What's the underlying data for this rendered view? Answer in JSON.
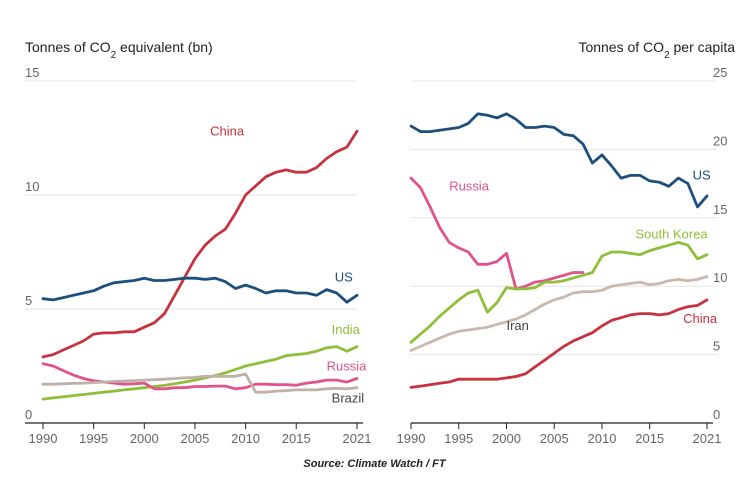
{
  "source": "Source: Climate Watch / FT",
  "colors": {
    "China": "#c8323f",
    "US": "#1d4f7c",
    "India": "#8fbf3a",
    "Russia": "#e0548a",
    "Brazil": "#bfb1a8",
    "Iran": "#c9b8ad",
    "South Korea": "#8fbf3a",
    "grid": "#e3e3e3",
    "axis": "#222222",
    "tick": "#666666"
  },
  "chart_data": [
    {
      "type": "line",
      "title_prefix": "Tonnes of CO",
      "title_sub": "2",
      "title_suffix": " equivalent (bn)",
      "xlim": [
        1990,
        2021
      ],
      "ylim": [
        0,
        15
      ],
      "xticks": [
        1990,
        1995,
        2000,
        2005,
        2010,
        2015,
        2021
      ],
      "yticks": [
        0,
        5,
        10,
        15
      ],
      "grid": true,
      "series": [
        {
          "name": "China",
          "label": {
            "x": 2006.5,
            "y": 12.6
          },
          "x": [
            1990,
            1991,
            1992,
            1993,
            1994,
            1995,
            1996,
            1997,
            1998,
            1999,
            2000,
            2001,
            2002,
            2003,
            2004,
            2005,
            2006,
            2007,
            2008,
            2009,
            2010,
            2011,
            2012,
            2013,
            2014,
            2015,
            2016,
            2017,
            2018,
            2019,
            2020,
            2021
          ],
          "y": [
            2.9,
            3.0,
            3.2,
            3.4,
            3.6,
            3.9,
            3.95,
            3.95,
            4.0,
            4.0,
            4.2,
            4.4,
            4.8,
            5.6,
            6.4,
            7.2,
            7.8,
            8.2,
            8.5,
            9.2,
            10.0,
            10.4,
            10.8,
            11.0,
            11.1,
            11.0,
            11.0,
            11.2,
            11.6,
            11.9,
            12.1,
            12.8
          ]
        },
        {
          "name": "US",
          "label": {
            "x": 2018.8,
            "y": 6.2
          },
          "x": [
            1990,
            1991,
            1992,
            1993,
            1994,
            1995,
            1996,
            1997,
            1998,
            1999,
            2000,
            2001,
            2002,
            2003,
            2004,
            2005,
            2006,
            2007,
            2008,
            2009,
            2010,
            2011,
            2012,
            2013,
            2014,
            2015,
            2016,
            2017,
            2018,
            2019,
            2020,
            2021
          ],
          "y": [
            5.45,
            5.4,
            5.5,
            5.6,
            5.7,
            5.8,
            6.0,
            6.15,
            6.2,
            6.25,
            6.35,
            6.25,
            6.25,
            6.3,
            6.35,
            6.35,
            6.3,
            6.35,
            6.2,
            5.9,
            6.05,
            5.9,
            5.7,
            5.8,
            5.8,
            5.7,
            5.7,
            5.6,
            5.85,
            5.7,
            5.3,
            5.6
          ]
        },
        {
          "name": "India",
          "label": {
            "x": 2018.5,
            "y": 3.9
          },
          "x": [
            1990,
            1991,
            1992,
            1993,
            1994,
            1995,
            1996,
            1997,
            1998,
            1999,
            2000,
            2001,
            2002,
            2003,
            2004,
            2005,
            2006,
            2007,
            2008,
            2009,
            2010,
            2011,
            2012,
            2013,
            2014,
            2015,
            2016,
            2017,
            2018,
            2019,
            2020,
            2021
          ],
          "y": [
            1.05,
            1.1,
            1.15,
            1.2,
            1.25,
            1.3,
            1.35,
            1.4,
            1.45,
            1.5,
            1.55,
            1.6,
            1.65,
            1.72,
            1.8,
            1.88,
            1.98,
            2.08,
            2.2,
            2.35,
            2.5,
            2.6,
            2.7,
            2.8,
            2.95,
            3.0,
            3.05,
            3.15,
            3.3,
            3.35,
            3.15,
            3.35
          ]
        },
        {
          "name": "Russia",
          "label": {
            "x": 2018.0,
            "y": 2.3
          },
          "x": [
            1990,
            1991,
            1992,
            1993,
            1994,
            1995,
            1996,
            1997,
            1998,
            1999,
            2000,
            2001,
            2002,
            2003,
            2004,
            2005,
            2006,
            2007,
            2008,
            2009,
            2010,
            2011,
            2012,
            2013,
            2014,
            2015,
            2016,
            2017,
            2018,
            2019,
            2020,
            2021
          ],
          "y": [
            2.6,
            2.5,
            2.3,
            2.1,
            1.95,
            1.85,
            1.8,
            1.75,
            1.7,
            1.72,
            1.75,
            1.5,
            1.5,
            1.55,
            1.55,
            1.6,
            1.6,
            1.62,
            1.62,
            1.5,
            1.55,
            1.7,
            1.7,
            1.68,
            1.68,
            1.66,
            1.75,
            1.8,
            1.88,
            1.88,
            1.8,
            1.95
          ]
        },
        {
          "name": "Brazil",
          "label": {
            "x": 2018.5,
            "y": 0.9
          },
          "x": [
            1990,
            1991,
            1992,
            1993,
            1994,
            1995,
            1996,
            1997,
            1998,
            1999,
            2000,
            2001,
            2002,
            2003,
            2004,
            2005,
            2006,
            2007,
            2008,
            2009,
            2010,
            2011,
            2012,
            2013,
            2014,
            2015,
            2016,
            2017,
            2018,
            2019,
            2020,
            2021
          ],
          "y": [
            1.7,
            1.7,
            1.72,
            1.74,
            1.75,
            1.77,
            1.8,
            1.82,
            1.84,
            1.86,
            1.88,
            1.9,
            1.92,
            1.95,
            1.98,
            2.0,
            2.05,
            2.05,
            2.05,
            2.05,
            2.15,
            1.35,
            1.35,
            1.4,
            1.42,
            1.45,
            1.45,
            1.45,
            1.5,
            1.52,
            1.5,
            1.55
          ]
        }
      ]
    },
    {
      "type": "line",
      "title_prefix": "Tonnes of CO",
      "title_sub": "2",
      "title_suffix": " per capita",
      "xlim": [
        1990,
        2021
      ],
      "ylim": [
        0,
        25
      ],
      "xticks": [
        1990,
        1995,
        2000,
        2005,
        2010,
        2015,
        2021
      ],
      "yticks": [
        0,
        5,
        10,
        15,
        20,
        25
      ],
      "grid": true,
      "series": [
        {
          "name": "US",
          "label": {
            "x": 2019.5,
            "y": 17.8
          },
          "x": [
            1990,
            1991,
            1992,
            1993,
            1994,
            1995,
            1996,
            1997,
            1998,
            1999,
            2000,
            2001,
            2002,
            2003,
            2004,
            2005,
            2006,
            2007,
            2008,
            2009,
            2010,
            2011,
            2012,
            2013,
            2014,
            2015,
            2016,
            2017,
            2018,
            2019,
            2020,
            2021
          ],
          "y": [
            21.7,
            21.3,
            21.3,
            21.4,
            21.5,
            21.6,
            21.9,
            22.6,
            22.5,
            22.3,
            22.6,
            22.2,
            21.6,
            21.6,
            21.7,
            21.6,
            21.1,
            21.0,
            20.4,
            19.0,
            19.6,
            18.8,
            17.9,
            18.1,
            18.1,
            17.7,
            17.6,
            17.3,
            17.9,
            17.5,
            15.8,
            16.6
          ]
        },
        {
          "name": "Russia",
          "label": {
            "x": 1994.0,
            "y": 17.0
          },
          "x": [
            1990,
            1991,
            1992,
            1993,
            1994,
            1995,
            1996,
            1997,
            1998,
            1999,
            2000,
            2001,
            2002,
            2003,
            2004,
            2005,
            2006,
            2007,
            2008
          ],
          "y": [
            17.9,
            17.2,
            15.8,
            14.3,
            13.2,
            12.8,
            12.5,
            11.6,
            11.6,
            11.8,
            12.4,
            9.8,
            10.0,
            10.3,
            10.4,
            10.6,
            10.8,
            11.0,
            11.0
          ]
        },
        {
          "name": "South Korea",
          "label": {
            "x": 2013.5,
            "y": 13.5
          },
          "x": [
            1990,
            1991,
            1992,
            1993,
            1994,
            1995,
            1996,
            1997,
            1998,
            1999,
            2000,
            2001,
            2002,
            2003,
            2004,
            2005,
            2006,
            2007,
            2008,
            2009,
            2010,
            2011,
            2012,
            2013,
            2014,
            2015,
            2016,
            2017,
            2018,
            2019,
            2020,
            2021
          ],
          "y": [
            5.9,
            6.5,
            7.1,
            7.8,
            8.4,
            9.0,
            9.5,
            9.7,
            8.1,
            8.8,
            9.9,
            9.8,
            9.8,
            9.9,
            10.3,
            10.3,
            10.4,
            10.6,
            10.8,
            11.0,
            12.2,
            12.5,
            12.5,
            12.4,
            12.3,
            12.6,
            12.8,
            13.0,
            13.2,
            13.0,
            12.0,
            12.3
          ]
        },
        {
          "name": "Iran",
          "label": {
            "x": 2000.0,
            "y": 6.8
          },
          "x": [
            1990,
            1991,
            1992,
            1993,
            1994,
            1995,
            1996,
            1997,
            1998,
            1999,
            2000,
            2001,
            2002,
            2003,
            2004,
            2005,
            2006,
            2007,
            2008,
            2009,
            2010,
            2011,
            2012,
            2013,
            2014,
            2015,
            2016,
            2017,
            2018,
            2019,
            2020,
            2021
          ],
          "y": [
            5.3,
            5.6,
            5.9,
            6.2,
            6.5,
            6.7,
            6.8,
            6.9,
            7.0,
            7.2,
            7.4,
            7.6,
            7.9,
            8.3,
            8.7,
            9.0,
            9.2,
            9.5,
            9.6,
            9.6,
            9.7,
            10.0,
            10.1,
            10.2,
            10.3,
            10.1,
            10.2,
            10.4,
            10.5,
            10.4,
            10.5,
            10.7
          ]
        },
        {
          "name": "China",
          "label": {
            "x": 2018.5,
            "y": 7.3
          },
          "x": [
            1990,
            1991,
            1992,
            1993,
            1994,
            1995,
            1996,
            1997,
            1998,
            1999,
            2000,
            2001,
            2002,
            2003,
            2004,
            2005,
            2006,
            2007,
            2008,
            2009,
            2010,
            2011,
            2012,
            2013,
            2014,
            2015,
            2016,
            2017,
            2018,
            2019,
            2020,
            2021
          ],
          "y": [
            2.6,
            2.7,
            2.8,
            2.9,
            3.0,
            3.2,
            3.2,
            3.2,
            3.2,
            3.2,
            3.3,
            3.4,
            3.6,
            4.1,
            4.6,
            5.1,
            5.6,
            6.0,
            6.3,
            6.6,
            7.1,
            7.5,
            7.7,
            7.9,
            8.0,
            8.0,
            7.9,
            8.0,
            8.3,
            8.5,
            8.6,
            9.0
          ]
        }
      ]
    }
  ]
}
